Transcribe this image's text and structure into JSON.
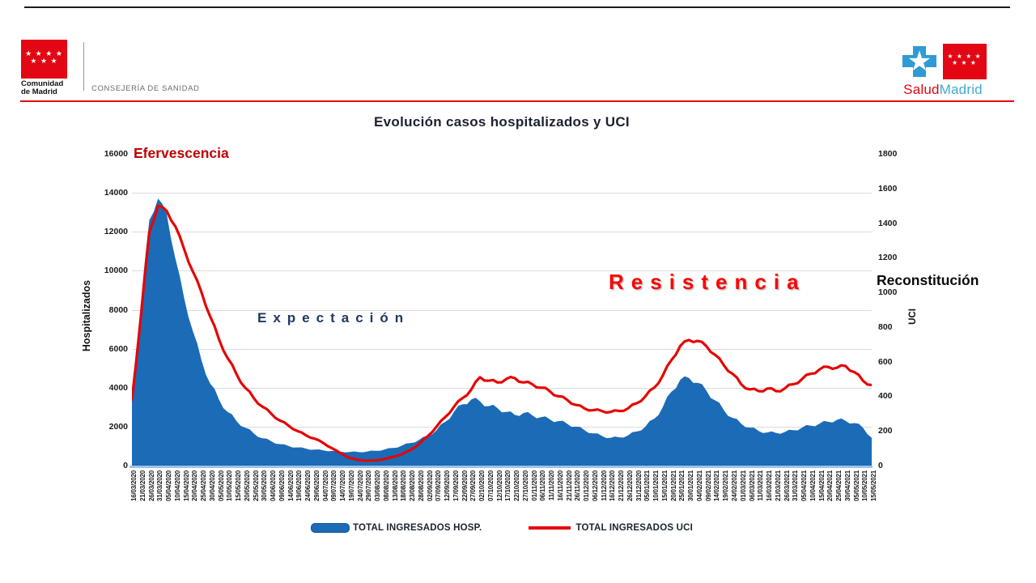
{
  "header": {
    "left_logo": {
      "org_line1": "Comunidad",
      "org_line2": "de Madrid",
      "stars_row1": "★ ★ ★ ★",
      "stars_row2": "★ ★ ★",
      "flag_color": "#E30613",
      "department": "CONSEJERÍA DE SANIDAD"
    },
    "right_logo": {
      "brand_salud": "Salud",
      "brand_madrid": "Madrid",
      "salud_color": "#E30613",
      "madrid_color": "#3FA9D5",
      "stars_row1": "★ ★ ★ ★",
      "stars_row2": "★ ★ ★"
    },
    "rule_color": "#E30613"
  },
  "chart": {
    "title": "Evolución casos hospitalizados y UCI",
    "left_axis": {
      "label": "Hospitalizados",
      "ticks": [
        16000,
        14000,
        12000,
        10000,
        8000,
        6000,
        4000,
        2000,
        0
      ]
    },
    "right_axis": {
      "label": "UCI",
      "ticks": [
        1800,
        1600,
        1400,
        1200,
        1000,
        800,
        600,
        400,
        200,
        0
      ]
    },
    "annotations": {
      "efervescencia": {
        "text": "Efervescencia",
        "color": "#C00000"
      },
      "expectacion": {
        "text": "Expectación",
        "color": "#1F3864"
      },
      "resistencia": {
        "text": "Resistencia",
        "color": "#FB0303"
      },
      "reconstitucion": {
        "text": "Reconstitución",
        "color": "#0a0a0a"
      }
    },
    "axis_line_color": "#9DC3E6",
    "grid_color": "#dcdcdc"
  },
  "chart_data": {
    "type": "area",
    "title": "Evolución casos hospitalizados y UCI",
    "xlabel": "",
    "ylabel_left": "Hospitalizados",
    "ylabel_right": "UCI",
    "ylim_left": [
      0,
      16000
    ],
    "ylim_right": [
      0,
      1800
    ],
    "grid": true,
    "legend_position": "bottom",
    "categories": [
      "16/03/2020",
      "21/03/2020",
      "26/03/2020",
      "31/03/2020",
      "05/04/2020",
      "10/04/2020",
      "15/04/2020",
      "20/04/2020",
      "25/04/2020",
      "30/04/2020",
      "05/05/2020",
      "10/05/2020",
      "15/05/2020",
      "20/05/2020",
      "25/05/2020",
      "30/05/2020",
      "04/06/2020",
      "09/06/2020",
      "14/06/2020",
      "19/06/2020",
      "24/06/2020",
      "29/06/2020",
      "04/07/2020",
      "09/07/2020",
      "14/07/2020",
      "19/07/2020",
      "24/07/2020",
      "29/07/2020",
      "03/08/2020",
      "08/08/2020",
      "13/08/2020",
      "18/08/2020",
      "23/08/2020",
      "28/08/2020",
      "02/09/2020",
      "07/09/2020",
      "12/09/2020",
      "17/09/2020",
      "22/09/2020",
      "27/09/2020",
      "02/10/2020",
      "07/10/2020",
      "12/10/2020",
      "17/10/2020",
      "22/10/2020",
      "27/10/2020",
      "01/11/2020",
      "06/11/2020",
      "11/11/2020",
      "16/11/2020",
      "21/11/2020",
      "26/11/2020",
      "01/12/2020",
      "06/12/2020",
      "11/12/2020",
      "16/12/2020",
      "21/12/2020",
      "26/12/2020",
      "31/12/2020",
      "05/01/2021",
      "10/01/2021",
      "15/01/2021",
      "20/01/2021",
      "25/01/2021",
      "30/01/2021",
      "04/02/2021",
      "09/02/2021",
      "14/02/2021",
      "19/02/2021",
      "24/02/2021",
      "01/03/2021",
      "06/03/2021",
      "11/03/2021",
      "16/03/2021",
      "21/03/2021",
      "26/03/2021",
      "31/03/2021",
      "05/04/2021",
      "10/04/2021",
      "15/04/2021",
      "20/04/2021",
      "25/04/2021",
      "30/04/2021",
      "05/05/2021",
      "10/05/2021",
      "15/05/2021"
    ],
    "series": [
      {
        "name": "TOTAL INGRESADOS HOSP.",
        "type": "area",
        "axis": "left",
        "color": "#1B6BB7",
        "values": [
          3400,
          8200,
          12600,
          13700,
          12900,
          10600,
          8600,
          6900,
          5400,
          4200,
          3400,
          2750,
          2300,
          1950,
          1650,
          1400,
          1250,
          1100,
          1000,
          930,
          870,
          820,
          780,
          750,
          720,
          700,
          700,
          720,
          760,
          820,
          900,
          1020,
          1160,
          1320,
          1520,
          1820,
          2250,
          2750,
          3150,
          3400,
          3300,
          3050,
          2950,
          2750,
          2600,
          2700,
          2580,
          2480,
          2380,
          2280,
          2150,
          2000,
          1820,
          1650,
          1520,
          1420,
          1450,
          1550,
          1750,
          2000,
          2400,
          3000,
          3800,
          4400,
          4500,
          4250,
          3850,
          3350,
          2850,
          2450,
          2150,
          1950,
          1780,
          1700,
          1680,
          1720,
          1820,
          1950,
          2050,
          2150,
          2250,
          2350,
          2300,
          2180,
          1950,
          1420
        ]
      },
      {
        "name": "TOTAL INGRESADOS UCI",
        "type": "line",
        "axis": "right",
        "color": "#E60505",
        "values": [
          380,
          850,
          1350,
          1500,
          1470,
          1380,
          1250,
          1120,
          1000,
          860,
          730,
          620,
          530,
          450,
          390,
          340,
          300,
          260,
          230,
          200,
          175,
          155,
          130,
          100,
          70,
          45,
          32,
          28,
          30,
          38,
          50,
          65,
          90,
          125,
          170,
          225,
          280,
          340,
          390,
          440,
          510,
          490,
          480,
          500,
          505,
          480,
          470,
          450,
          430,
          400,
          380,
          350,
          330,
          320,
          315,
          310,
          315,
          330,
          360,
          400,
          450,
          520,
          610,
          690,
          725,
          720,
          690,
          640,
          580,
          530,
          470,
          440,
          430,
          445,
          430,
          445,
          470,
          500,
          530,
          555,
          570,
          565,
          575,
          540,
          490,
          465
        ]
      }
    ]
  }
}
